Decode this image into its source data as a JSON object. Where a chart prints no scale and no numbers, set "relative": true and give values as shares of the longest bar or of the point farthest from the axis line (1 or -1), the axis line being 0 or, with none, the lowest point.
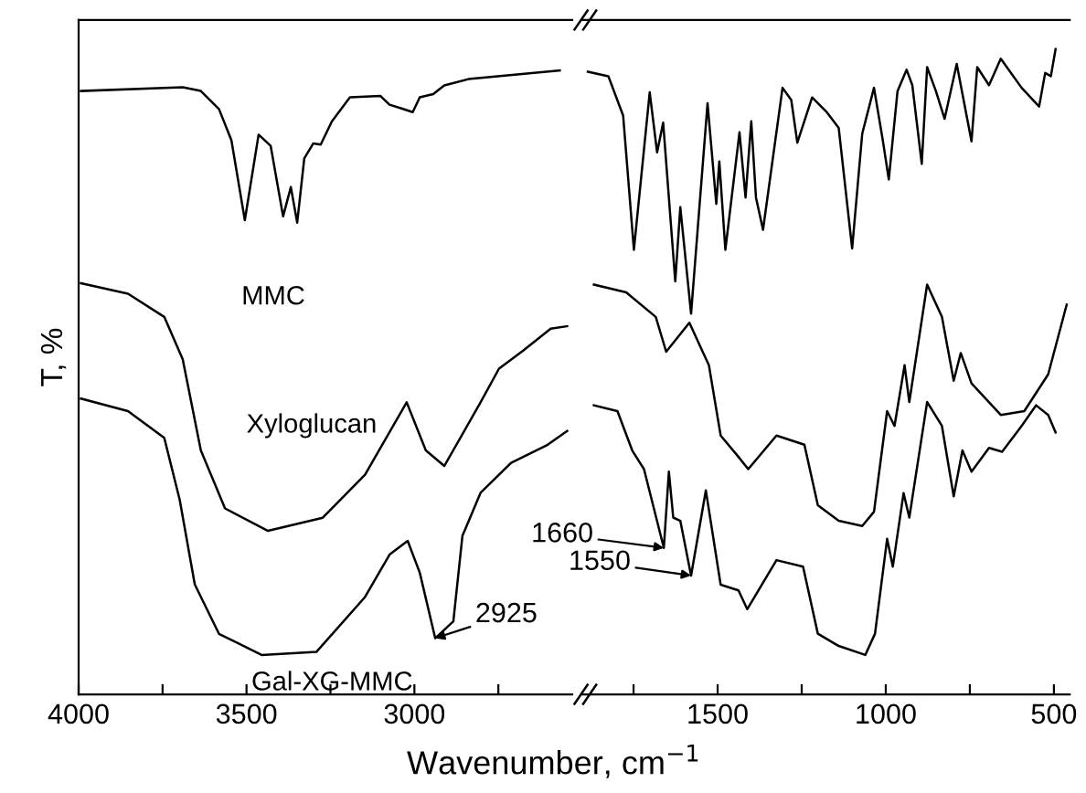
{
  "chart_data": [
    {
      "type": "line",
      "relative": true,
      "ylabel": "T, %",
      "xlabel": "Wavenumber, cm$^{−1}$",
      "xlim": [
        4000,
        2530
      ],
      "xticks": [
        4000,
        {
          "value": 3750,
          "label": null
        },
        3500,
        {
          "value": 3250,
          "label": null
        },
        3000,
        {
          "value": 2750,
          "label": null
        }
      ],
      "tick_labels": "x",
      "grid": false,
      "legend": false,
      "marker": "none",
      "line_style": "solid",
      "series": [
        {
          "name": "MMC",
          "color": "#000000",
          "x": [
            3993,
            3690,
            3636,
            3582,
            3545,
            3505,
            3464,
            3428,
            3391,
            3368,
            3349,
            3328,
            3301,
            3279,
            3246,
            3192,
            3101,
            3074,
            3038,
            3005,
            2984,
            2944,
            2911,
            2839,
            2567
          ],
          "values": [
            0.967,
            0.973,
            0.967,
            0.938,
            0.888,
            0.76,
            0.897,
            0.879,
            0.766,
            0.813,
            0.756,
            0.859,
            0.883,
            0.881,
            0.918,
            0.957,
            0.959,
            0.945,
            0.939,
            0.933,
            0.957,
            0.962,
            0.976,
            0.986,
            1
          ]
        },
        {
          "name": "Xyloglucan",
          "color": "#000000",
          "x": [
            3993,
            3853,
            3745,
            3690,
            3636,
            3564,
            3436,
            3273,
            3147,
            3023,
            2966,
            2911,
            2803,
            2748,
            2676,
            2594,
            2545
          ],
          "values": [
            0.659,
            0.642,
            0.605,
            0.537,
            0.391,
            0.298,
            0.262,
            0.283,
            0.352,
            0.468,
            0.391,
            0.366,
            0.468,
            0.522,
            0.551,
            0.586,
            0.59
          ]
        },
        {
          "name": "Gal-XG-MMC",
          "color": "#000000",
          "x": [
            3993,
            3853,
            3745,
            3699,
            3654,
            3582,
            3455,
            3292,
            3147,
            3074,
            3020,
            2984,
            2938,
            2884,
            2857,
            2803,
            2712,
            2603,
            2545
          ],
          "values": [
            0.474,
            0.454,
            0.411,
            0.312,
            0.176,
            0.097,
            0.063,
            0.068,
            0.156,
            0.224,
            0.246,
            0.195,
            0.09,
            0.117,
            0.254,
            0.323,
            0.371,
            0.4,
            0.422
          ]
        }
      ],
      "annotations": [
        {
          "text": "2925",
          "x": 2938,
          "y": 0.09
        }
      ]
    },
    {
      "type": "line",
      "relative": true,
      "xlim": [
        1905,
        453
      ],
      "xticks": [
        {
          "value": 1750,
          "label": null
        },
        1500,
        {
          "value": 1250,
          "label": null
        },
        1000,
        {
          "value": 750,
          "label": null
        },
        500
      ],
      "tick_labels": "x",
      "grid": false,
      "legend": false,
      "marker": "none",
      "line_style": "solid",
      "series": [
        {
          "color": "#000000",
          "x": [
            1886,
            1825,
            1781,
            1749,
            1702,
            1680,
            1662,
            1626,
            1611,
            1579,
            1530,
            1504,
            1495,
            1477,
            1435,
            1417,
            1400,
            1386,
            1365,
            1307,
            1281,
            1263,
            1219,
            1175,
            1140,
            1100,
            1070,
            1035,
            1009,
            991,
            965,
            938,
            921,
            893,
            877,
            851,
            825,
            789,
            745,
            728,
            693,
            658,
            596,
            544,
            526,
            509,
            495
          ],
          "values": [
            0.965,
            0.958,
            0.897,
            0.689,
            0.933,
            0.84,
            0.886,
            0.64,
            0.755,
            0.59,
            0.916,
            0.76,
            0.826,
            0.689,
            0.871,
            0.77,
            0.888,
            0.77,
            0.72,
            0.94,
            0.921,
            0.855,
            0.925,
            0.902,
            0.878,
            0.691,
            0.869,
            0.94,
            0.859,
            0.798,
            0.935,
            0.968,
            0.944,
            0.822,
            0.972,
            0.935,
            0.892,
            0.977,
            0.857,
            0.972,
            0.944,
            0.985,
            0.94,
            0.911,
            0.963,
            0.958,
            1
          ]
        },
        {
          "color": "#000000",
          "x": [
            1868,
            1772,
            1684,
            1653,
            1584,
            1526,
            1491,
            1438,
            1409,
            1325,
            1242,
            1202,
            1140,
            1070,
            1035,
            996,
            974,
            944,
            930,
            877,
            833,
            798,
            777,
            745,
            658,
            588,
            517,
            462
          ],
          "values": [
            0.635,
            0.623,
            0.585,
            0.531,
            0.576,
            0.51,
            0.401,
            0.368,
            0.349,
            0.401,
            0.387,
            0.293,
            0.269,
            0.261,
            0.283,
            0.439,
            0.416,
            0.51,
            0.453,
            0.635,
            0.585,
            0.486,
            0.529,
            0.482,
            0.433,
            0.439,
            0.496,
            0.604
          ]
        },
        {
          "color": "#000000",
          "x": [
            1868,
            1798,
            1754,
            1719,
            1660,
            1645,
            1632,
            1611,
            1579,
            1535,
            1491,
            1438,
            1412,
            1325,
            1246,
            1202,
            1140,
            1061,
            1032,
            996,
            979,
            947,
            930,
            877,
            833,
            798,
            772,
            745,
            693,
            654,
            596,
            553,
            517,
            495
          ],
          "values": [
            0.448,
            0.439,
            0.378,
            0.349,
            0.227,
            0.345,
            0.274,
            0.269,
            0.184,
            0.316,
            0.17,
            0.161,
            0.132,
            0.208,
            0.198,
            0.094,
            0.075,
            0.061,
            0.094,
            0.241,
            0.198,
            0.312,
            0.274,
            0.453,
            0.416,
            0.307,
            0.378,
            0.345,
            0.382,
            0.376,
            0.416,
            0.448,
            0.433,
            0.406
          ]
        }
      ],
      "annotations": [
        {
          "text": "1660",
          "x": 1660,
          "y": 0.227
        },
        {
          "text": "1550",
          "x": 1579,
          "y": 0.184
        }
      ]
    }
  ]
}
